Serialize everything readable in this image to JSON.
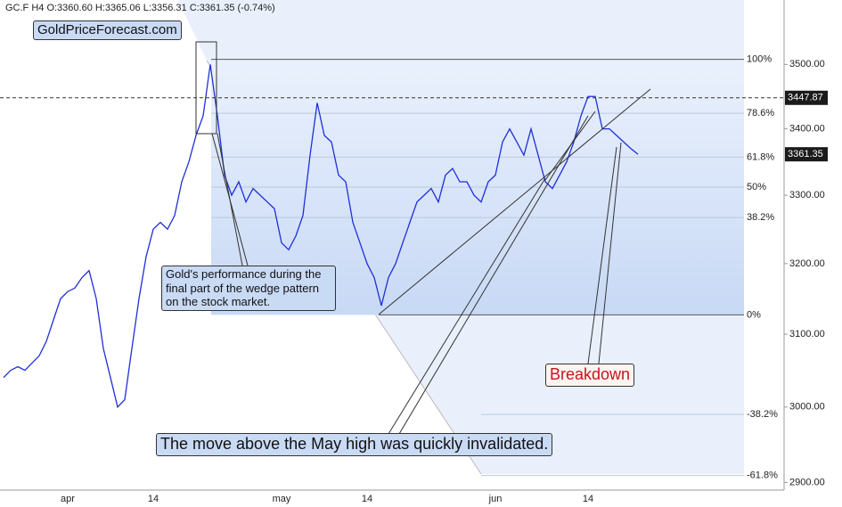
{
  "chart_data": {
    "type": "line",
    "header": "GC.F  H4  O:3360.60  H:3365.06  L:3356.31  C:3361.35  (-0.74%)",
    "categories": [
      null,
      null,
      null,
      null,
      null,
      null,
      null,
      null,
      null,
      "apr",
      null,
      null,
      null,
      null,
      null,
      null,
      null,
      null,
      null,
      null,
      null,
      "14",
      null,
      null,
      null,
      null,
      null,
      null,
      null,
      null,
      null,
      null,
      null,
      null,
      null,
      null,
      null,
      null,
      null,
      "may",
      null,
      null,
      null,
      null,
      null,
      null,
      null,
      null,
      null,
      null,
      null,
      "14",
      null,
      null,
      null,
      null,
      null,
      null,
      null,
      null,
      null,
      null,
      null,
      null,
      null,
      null,
      null,
      null,
      null,
      "jun",
      null,
      null,
      null,
      null,
      null,
      null,
      null,
      null,
      null,
      null,
      null,
      null,
      "14",
      null,
      null,
      null,
      null,
      null,
      null,
      null
    ],
    "series": [
      {
        "color": "#1f2fd8",
        "values": [
          3040,
          3050,
          3055,
          3050,
          3060,
          3070,
          3090,
          3120,
          3150,
          3160,
          3165,
          3180,
          3190,
          3150,
          3080,
          3040,
          3000,
          3010,
          3080,
          3150,
          3210,
          3250,
          3260,
          3250,
          3270,
          3320,
          3350,
          3390,
          3420,
          3500,
          3420,
          3330,
          3300,
          3320,
          3290,
          3310,
          3300,
          3290,
          3280,
          3230,
          3220,
          3240,
          3270,
          3360,
          3440,
          3390,
          3380,
          3330,
          3320,
          3260,
          3230,
          3200,
          3180,
          3140,
          3180,
          3200,
          3230,
          3260,
          3290,
          3300,
          3310,
          3290,
          3330,
          3340,
          3320,
          3320,
          3300,
          3290,
          3320,
          3330,
          3380,
          3400,
          3380,
          3360,
          3400,
          3360,
          3320,
          3310,
          3330,
          3350,
          3380,
          3420,
          3450,
          3450,
          3400,
          3400,
          3390,
          3380,
          3370,
          3361.35
        ]
      }
    ],
    "log_scale": true,
    "ylim": [
      2890,
      3603
    ],
    "yticks": [
      {
        "value": 2900,
        "label": "2900.00"
      },
      {
        "value": 3000,
        "label": "3000.00"
      },
      {
        "value": 3100,
        "label": "3100.00"
      },
      {
        "value": 3200,
        "label": "3200.00"
      },
      {
        "value": 3300,
        "label": "3300.00"
      },
      {
        "value": 3400,
        "label": "3400.00"
      },
      {
        "value": 3500,
        "label": "3500.00"
      }
    ],
    "price_lines": [
      {
        "value": 3447.87,
        "dashed": true
      },
      {
        "value": 3361.35,
        "dashed": false
      }
    ],
    "fib_levels": [
      {
        "label": "100%",
        "value": 3508
      },
      {
        "label": "78.6%",
        "value": 3424
      },
      {
        "label": "61.8%",
        "value": 3357
      },
      {
        "label": "50%",
        "value": 3312
      },
      {
        "label": "38.2%",
        "value": 3267
      },
      {
        "label": "0%",
        "value": 3127
      },
      {
        "label": "-38.2%",
        "value": 2990
      },
      {
        "label": "-61.8%",
        "value": 2909
      }
    ],
    "annotations": {
      "site": "GoldPriceForecast.com",
      "wedge_note": "Gold's performance during the final part of the wedge pattern on the stock market.",
      "invalidation_note": "The move above the May high was quickly invalidated.",
      "breakdown": "Breakdown"
    }
  }
}
